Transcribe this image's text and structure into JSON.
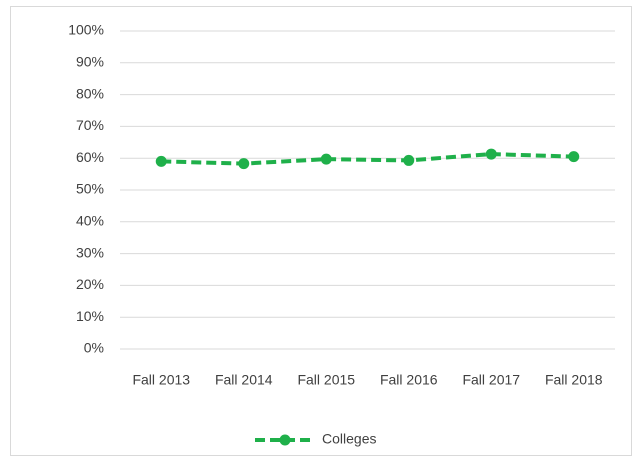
{
  "chart_data": {
    "type": "line",
    "categories": [
      "Fall 2013",
      "Fall 2014",
      "Fall 2015",
      "Fall 2016",
      "Fall 2017",
      "Fall 2018"
    ],
    "series": [
      {
        "name": "Colleges",
        "color": "#1fb04a",
        "values": [
          59,
          58.3,
          59.7,
          59.3,
          61.3,
          60.5
        ]
      }
    ],
    "ylim": [
      0,
      100
    ],
    "yticks": [
      {
        "value": 0,
        "label": "0%"
      },
      {
        "value": 10,
        "label": "10%"
      },
      {
        "value": 20,
        "label": "20%"
      },
      {
        "value": 30,
        "label": "30%"
      },
      {
        "value": 40,
        "label": "40%"
      },
      {
        "value": 50,
        "label": "50%"
      },
      {
        "value": 60,
        "label": "60%"
      },
      {
        "value": 70,
        "label": "70%"
      },
      {
        "value": 80,
        "label": "80%"
      },
      {
        "value": 90,
        "label": "90%"
      },
      {
        "value": 100,
        "label": "100%"
      }
    ],
    "grid": true,
    "legend": "bottom"
  }
}
